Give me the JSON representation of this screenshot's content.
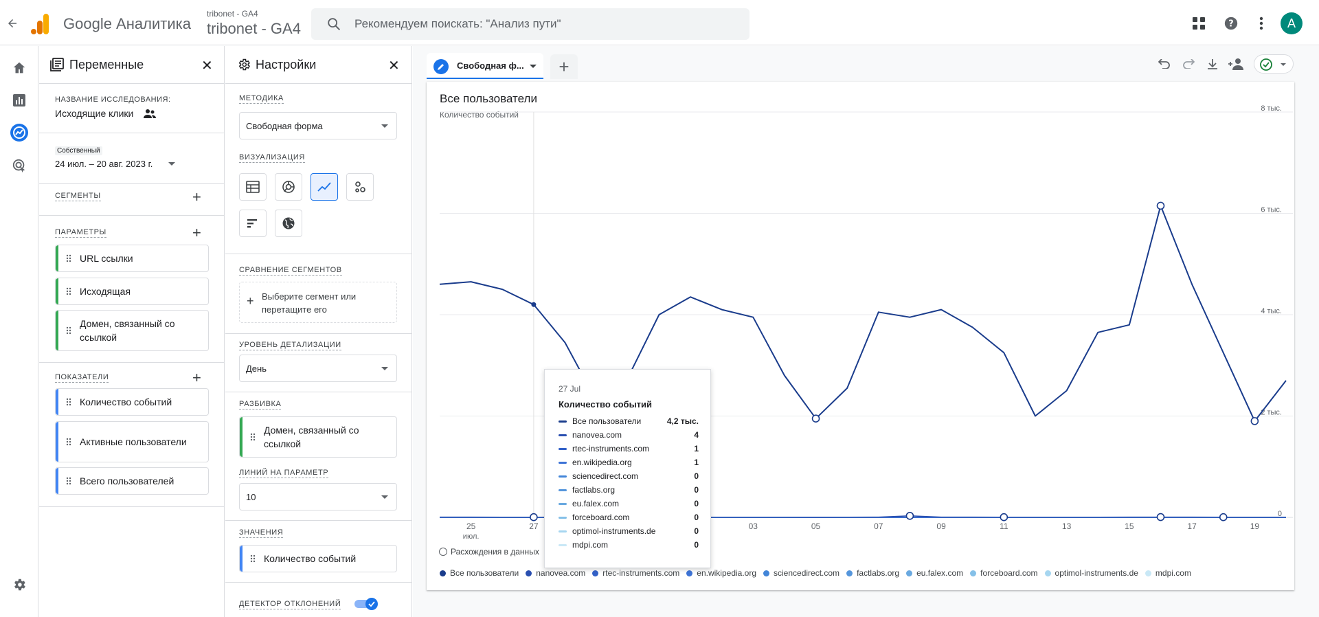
{
  "app": {
    "title": "Google Аналитика"
  },
  "account": {
    "small": "tribonet - GA4",
    "big": "tribonet - GA4"
  },
  "search": {
    "placeholder": "Рекомендуем поискать: \"Анализ пути\""
  },
  "user": {
    "initial": "A"
  },
  "icons": {
    "back": "arrow-back-icon",
    "apps": "apps-grid-icon",
    "help": "help-icon",
    "more": "more-vert-icon",
    "nav": [
      "home-icon",
      "reports-icon",
      "explore-icon",
      "advertising-icon",
      "admin-gear-icon"
    ]
  },
  "variables_panel": {
    "title": "Переменные",
    "study_name_label": "НАЗВАНИЕ ИССЛЕДОВАНИЯ:",
    "study_name": "Исходящие клики",
    "date_badge": "Собственный",
    "date_range": "24 июл. – 20 авг. 2023 г.",
    "segments_label": "СЕГМЕНТЫ",
    "params_label": "ПАРАМЕТРЫ",
    "params": [
      "URL ссылки",
      "Исходящая",
      "Домен, связанный со ссылкой"
    ],
    "metrics_label": "ПОКАЗАТЕЛИ",
    "metrics": [
      "Количество событий",
      "Активные пользователи",
      "Всего пользователей"
    ]
  },
  "settings_panel": {
    "title": "Настройки",
    "method_label": "МЕТОДИКА",
    "method_value": "Свободная форма",
    "viz_label": "ВИЗУАЛИЗАЦИЯ",
    "compare_label": "СРАВНЕНИЕ СЕГМЕНТОВ",
    "compare_placeholder": "Выберите сегмент или перетащите его",
    "granularity_label": "УРОВЕНЬ ДЕТАЛИЗАЦИИ",
    "granularity_value": "День",
    "breakdown_label": "РАЗБИВКА",
    "breakdown_value": "Домен, связанный со ссылкой",
    "lines_label": "ЛИНИЙ НА ПАРАМЕТР",
    "lines_value": "10",
    "values_label": "ЗНАЧЕНИЯ",
    "values_value": "Количество событий",
    "anomaly_label": "ДЕТЕКТОР ОТКЛОНЕНИЙ"
  },
  "tab": {
    "label": "Свободная ф..."
  },
  "chart_header": {
    "title": "Все пользователи",
    "ylabel": "Количество событий"
  },
  "anomaly_legend": "Расхождения в данных",
  "tooltip": {
    "date": "27 Jul",
    "title": "Количество событий",
    "rows": [
      {
        "name": "Все пользователи",
        "value": "4,2 тыс."
      },
      {
        "name": "nanovea.com",
        "value": "4"
      },
      {
        "name": "rtec-instruments.com",
        "value": "1"
      },
      {
        "name": "en.wikipedia.org",
        "value": "1"
      },
      {
        "name": "sciencedirect.com",
        "value": "0"
      },
      {
        "name": "factlabs.org",
        "value": "0"
      },
      {
        "name": "eu.falex.com",
        "value": "0"
      },
      {
        "name": "forceboard.com",
        "value": "0"
      },
      {
        "name": "optimol-instruments.de",
        "value": "0"
      },
      {
        "name": "mdpi.com",
        "value": "0"
      }
    ]
  },
  "series_colors": [
    "#1a3c8c",
    "#2a4fb0",
    "#3361c8",
    "#3d73d6",
    "#4285d8",
    "#5596dc",
    "#6aa9e0",
    "#85c0e8",
    "#a6d6f0",
    "#c9e8f6"
  ],
  "chart_data": {
    "type": "line",
    "x": [
      "24",
      "25",
      "26",
      "27",
      "28",
      "29",
      "30",
      "31",
      "01",
      "02",
      "03",
      "04",
      "05",
      "06",
      "07",
      "08",
      "09",
      "10",
      "11",
      "12",
      "13",
      "14",
      "15",
      "16",
      "17",
      "18",
      "19",
      "20"
    ],
    "x_tick_labels": [
      "25",
      "27",
      "29",
      "31",
      "03",
      "05",
      "07",
      "09",
      "11",
      "13",
      "15",
      "17",
      "19"
    ],
    "x_sublabel": "июл.",
    "y_ticks": [
      "0",
      "2 тыс.",
      "4 тыс.",
      "6 тыс.",
      "8 тыс."
    ],
    "ylim": [
      0,
      8000
    ],
    "series": [
      {
        "name": "Все пользователи",
        "values": [
          4600,
          4650,
          4500,
          4200,
          3450,
          2300,
          2750,
          4000,
          4350,
          4100,
          3950,
          2800,
          1950,
          2550,
          4050,
          3950,
          4100,
          3750,
          3250,
          2000,
          2500,
          3650,
          3800,
          6150,
          4600,
          3250,
          1900,
          2700
        ]
      },
      {
        "name": "nanovea.com",
        "values": [
          5,
          5,
          4,
          4,
          3,
          2,
          3,
          4,
          4,
          4,
          4,
          3,
          3,
          4,
          5,
          30,
          6,
          5,
          4,
          3,
          3,
          4,
          5,
          6,
          5,
          4,
          4,
          4
        ]
      },
      {
        "name": "rtec-instruments.com",
        "values": [
          1,
          1,
          1,
          1,
          1,
          0,
          1,
          1,
          1,
          1,
          1,
          1,
          0,
          1,
          1,
          2,
          1,
          1,
          1,
          1,
          1,
          1,
          1,
          1,
          1,
          1,
          1,
          1
        ]
      },
      {
        "name": "en.wikipedia.org",
        "values": [
          1,
          1,
          1,
          1,
          1,
          1,
          1,
          1,
          1,
          1,
          1,
          1,
          1,
          1,
          1,
          1,
          1,
          1,
          1,
          1,
          1,
          1,
          1,
          1,
          1,
          1,
          1,
          1
        ]
      },
      {
        "name": "sciencedirect.com",
        "values": [
          0,
          0,
          0,
          0,
          0,
          0,
          0,
          0,
          0,
          0,
          0,
          0,
          0,
          0,
          0,
          0,
          0,
          0,
          0,
          0,
          0,
          0,
          0,
          0,
          0,
          0,
          0,
          0
        ]
      },
      {
        "name": "factlabs.org",
        "values": [
          0,
          0,
          0,
          0,
          0,
          0,
          0,
          0,
          0,
          0,
          0,
          0,
          0,
          0,
          0,
          0,
          0,
          0,
          0,
          0,
          0,
          0,
          0,
          0,
          0,
          0,
          0,
          0
        ]
      },
      {
        "name": "eu.falex.com",
        "values": [
          0,
          0,
          0,
          0,
          0,
          0,
          0,
          0,
          0,
          0,
          0,
          0,
          0,
          0,
          0,
          0,
          0,
          0,
          0,
          0,
          0,
          0,
          0,
          0,
          0,
          0,
          0,
          0
        ]
      },
      {
        "name": "forceboard.com",
        "values": [
          0,
          0,
          0,
          0,
          0,
          0,
          0,
          0,
          0,
          0,
          0,
          0,
          0,
          0,
          0,
          0,
          0,
          0,
          0,
          0,
          0,
          0,
          0,
          0,
          0,
          0,
          0,
          0
        ]
      },
      {
        "name": "optimol-instruments.de",
        "values": [
          0,
          0,
          0,
          0,
          0,
          0,
          0,
          0,
          0,
          0,
          0,
          0,
          0,
          0,
          0,
          0,
          0,
          0,
          0,
          0,
          0,
          0,
          0,
          0,
          0,
          0,
          0,
          0
        ]
      },
      {
        "name": "mdpi.com",
        "values": [
          0,
          0,
          0,
          0,
          0,
          0,
          0,
          0,
          0,
          0,
          0,
          0,
          0,
          0,
          0,
          0,
          0,
          0,
          0,
          0,
          0,
          0,
          0,
          0,
          0,
          0,
          0,
          0
        ]
      }
    ],
    "anomaly_points": [
      {
        "series": "Все пользователи",
        "x": "05",
        "y": 1950
      },
      {
        "series": "Все пользователи",
        "x": "16",
        "y": 6150
      },
      {
        "series": "Все пользователи",
        "x": "19",
        "y": 1900
      },
      {
        "series": "nanovea.com",
        "x": "27",
        "y": 4
      },
      {
        "series": "nanovea.com",
        "x": "01",
        "y": 4
      },
      {
        "series": "nanovea.com",
        "x": "08",
        "y": 30
      },
      {
        "series": "nanovea.com",
        "x": "11",
        "y": 4
      },
      {
        "series": "nanovea.com",
        "x": "16",
        "y": 6
      },
      {
        "series": "nanovea.com",
        "x": "18",
        "y": 4
      }
    ],
    "hover_x": "27",
    "legend_position": "bottom",
    "grid": true
  }
}
